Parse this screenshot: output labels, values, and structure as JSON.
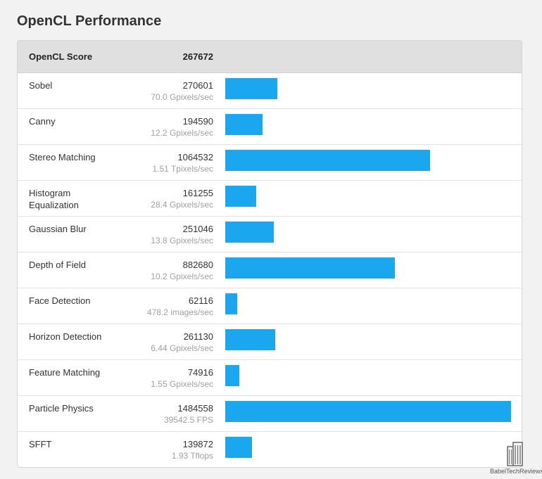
{
  "page": {
    "title": "OpenCL Performance"
  },
  "table": {
    "header": {
      "label": "OpenCL Score",
      "score": "267672"
    },
    "rows": [
      {
        "name": "Sobel",
        "score": "270601",
        "rate": "70.0 Gpixels/sec",
        "value": 270601
      },
      {
        "name": "Canny",
        "score": "194590",
        "rate": "12.2 Gpixels/sec",
        "value": 194590
      },
      {
        "name": "Stereo Matching",
        "score": "1064532",
        "rate": "1.51 Tpixels/sec",
        "value": 1064532
      },
      {
        "name": "Histogram Equalization",
        "score": "161255",
        "rate": "28.4 Gpixels/sec",
        "value": 161255
      },
      {
        "name": "Gaussian Blur",
        "score": "251046",
        "rate": "13.8 Gpixels/sec",
        "value": 251046
      },
      {
        "name": "Depth of Field",
        "score": "882680",
        "rate": "10.2 Gpixels/sec",
        "value": 882680
      },
      {
        "name": "Face Detection",
        "score": "62116",
        "rate": "478.2 images/sec",
        "value": 62116
      },
      {
        "name": "Horizon Detection",
        "score": "261130",
        "rate": "6.44 Gpixels/sec",
        "value": 261130
      },
      {
        "name": "Feature Matching",
        "score": "74916",
        "rate": "1.55 Gpixels/sec",
        "value": 74916
      },
      {
        "name": "Particle Physics",
        "score": "1484558",
        "rate": "39542.5 FPS",
        "value": 1484558
      },
      {
        "name": "SFFT",
        "score": "139872",
        "rate": "1.93 Tflops",
        "value": 139872
      }
    ],
    "bar_color": "#1aa7f0",
    "bar_max_value": 1484558
  },
  "watermark": {
    "text": "BabelTechReviews",
    "icon": "building-icon"
  }
}
